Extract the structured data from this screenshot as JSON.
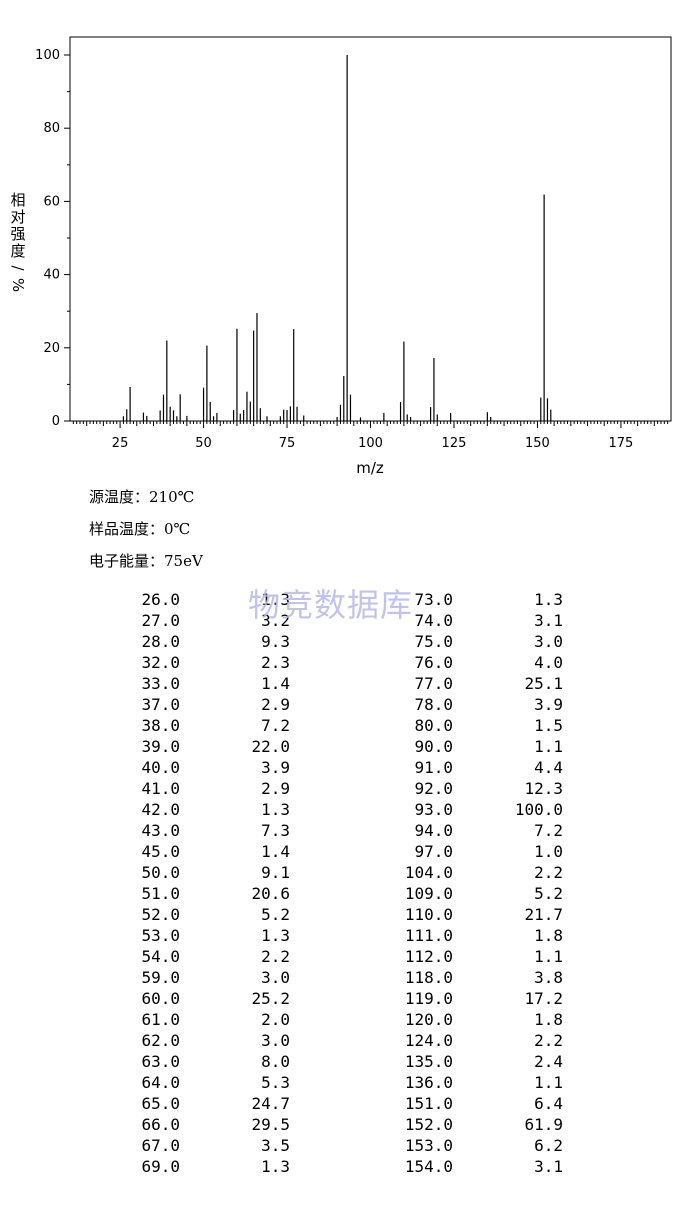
{
  "chart_data": {
    "type": "bar",
    "xlabel": "m/z",
    "ylabel": "相对强度/%",
    "xlim": [
      10,
      190
    ],
    "ylim": [
      0,
      105
    ],
    "x_ticks": [
      25,
      50,
      75,
      100,
      125,
      150,
      175
    ],
    "y_ticks": [
      0,
      20,
      40,
      60,
      80,
      100
    ],
    "grid": false,
    "x": [
      26,
      27,
      28,
      32,
      33,
      37,
      38,
      39,
      40,
      41,
      42,
      43,
      45,
      50,
      51,
      52,
      53,
      54,
      59,
      60,
      61,
      62,
      63,
      64,
      65,
      66,
      67,
      69,
      73,
      74,
      75,
      76,
      77,
      78,
      80,
      90,
      91,
      92,
      93,
      94,
      97,
      104,
      109,
      110,
      111,
      112,
      118,
      119,
      120,
      124,
      135,
      136,
      151,
      152,
      153,
      154
    ],
    "values": [
      1.3,
      3.2,
      9.3,
      2.3,
      1.4,
      2.9,
      7.2,
      22.0,
      3.9,
      2.9,
      1.3,
      7.3,
      1.4,
      9.1,
      20.6,
      5.2,
      1.3,
      2.2,
      3.0,
      25.2,
      2.0,
      3.0,
      8.0,
      5.3,
      24.7,
      29.5,
      3.5,
      1.3,
      1.3,
      3.1,
      3.0,
      4.0,
      25.1,
      3.9,
      1.5,
      1.1,
      4.4,
      12.3,
      100.0,
      7.2,
      1.0,
      2.2,
      5.2,
      21.7,
      1.8,
      1.1,
      3.8,
      17.2,
      1.8,
      2.2,
      2.4,
      1.1,
      6.4,
      61.9,
      6.2,
      3.1
    ]
  },
  "info": {
    "source_temp": "源温度：210℃",
    "sample_temp": "样品温度：0℃",
    "electron_energy": "电子能量：75eV"
  },
  "watermark": "物竞数据库",
  "table": {
    "rows": [
      [
        "26.0",
        "1.3",
        "73.0",
        "1.3"
      ],
      [
        "27.0",
        "3.2",
        "74.0",
        "3.1"
      ],
      [
        "28.0",
        "9.3",
        "75.0",
        "3.0"
      ],
      [
        "32.0",
        "2.3",
        "76.0",
        "4.0"
      ],
      [
        "33.0",
        "1.4",
        "77.0",
        "25.1"
      ],
      [
        "37.0",
        "2.9",
        "78.0",
        "3.9"
      ],
      [
        "38.0",
        "7.2",
        "80.0",
        "1.5"
      ],
      [
        "39.0",
        "22.0",
        "90.0",
        "1.1"
      ],
      [
        "40.0",
        "3.9",
        "91.0",
        "4.4"
      ],
      [
        "41.0",
        "2.9",
        "92.0",
        "12.3"
      ],
      [
        "42.0",
        "1.3",
        "93.0",
        "100.0"
      ],
      [
        "43.0",
        "7.3",
        "94.0",
        "7.2"
      ],
      [
        "45.0",
        "1.4",
        "97.0",
        "1.0"
      ],
      [
        "50.0",
        "9.1",
        "104.0",
        "2.2"
      ],
      [
        "51.0",
        "20.6",
        "109.0",
        "5.2"
      ],
      [
        "52.0",
        "5.2",
        "110.0",
        "21.7"
      ],
      [
        "53.0",
        "1.3",
        "111.0",
        "1.8"
      ],
      [
        "54.0",
        "2.2",
        "112.0",
        "1.1"
      ],
      [
        "59.0",
        "3.0",
        "118.0",
        "3.8"
      ],
      [
        "60.0",
        "25.2",
        "119.0",
        "17.2"
      ],
      [
        "61.0",
        "2.0",
        "120.0",
        "1.8"
      ],
      [
        "62.0",
        "3.0",
        "124.0",
        "2.2"
      ],
      [
        "63.0",
        "8.0",
        "135.0",
        "2.4"
      ],
      [
        "64.0",
        "5.3",
        "136.0",
        "1.1"
      ],
      [
        "65.0",
        "24.7",
        "151.0",
        "6.4"
      ],
      [
        "66.0",
        "29.5",
        "152.0",
        "61.9"
      ],
      [
        "67.0",
        "3.5",
        "153.0",
        "6.2"
      ],
      [
        "69.0",
        "1.3",
        "154.0",
        "3.1"
      ]
    ]
  }
}
